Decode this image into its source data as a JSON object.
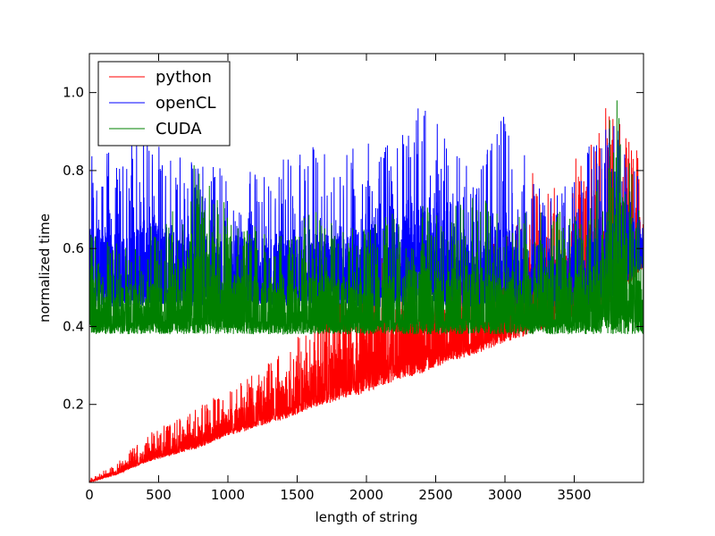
{
  "chart_data": {
    "type": "line",
    "title": "",
    "xlabel": "length of string",
    "ylabel": "normalized time",
    "xlim": [
      0,
      4000
    ],
    "ylim": [
      0.0,
      1.1
    ],
    "x_ticks": [
      0,
      500,
      1000,
      1500,
      2000,
      2500,
      3000,
      3500
    ],
    "x_tick_labels": [
      "0",
      "500",
      "1000",
      "1500",
      "2000",
      "2500",
      "3000",
      "3500"
    ],
    "y_ticks": [
      0.2,
      0.4,
      0.6,
      0.8,
      1.0
    ],
    "y_tick_labels": [
      "0.2",
      "0.4",
      "0.6",
      "0.8",
      "1.0"
    ],
    "legend_position": "top-left",
    "grid": false,
    "series": [
      {
        "name": "python",
        "color": "#ff0000",
        "x": [
          0,
          200,
          400,
          600,
          800,
          1000,
          1200,
          1400,
          1600,
          1800,
          2000,
          2200,
          2400,
          2600,
          2800,
          3000,
          3200,
          3400,
          3600,
          3800,
          4000
        ],
        "baseline": [
          0.0,
          0.02,
          0.05,
          0.07,
          0.09,
          0.12,
          0.14,
          0.16,
          0.19,
          0.21,
          0.23,
          0.26,
          0.28,
          0.31,
          0.33,
          0.36,
          0.38,
          0.41,
          0.43,
          0.47,
          0.55
        ],
        "peak": [
          0.01,
          0.05,
          0.12,
          0.16,
          0.2,
          0.24,
          0.28,
          0.34,
          0.42,
          0.55,
          0.6,
          0.65,
          0.6,
          0.6,
          0.6,
          0.65,
          0.8,
          0.75,
          0.9,
          1.0,
          0.81
        ]
      },
      {
        "name": "openCL",
        "color": "#0000ff",
        "x": [
          0,
          200,
          400,
          600,
          800,
          1000,
          1200,
          1400,
          1600,
          1800,
          2000,
          2200,
          2400,
          2600,
          2800,
          3000,
          3200,
          3400,
          3600,
          3800,
          4000
        ],
        "baseline": [
          0.45,
          0.45,
          0.45,
          0.45,
          0.45,
          0.45,
          0.45,
          0.45,
          0.45,
          0.45,
          0.45,
          0.45,
          0.45,
          0.45,
          0.45,
          0.45,
          0.45,
          0.45,
          0.45,
          0.48,
          0.55
        ],
        "peak": [
          0.86,
          0.84,
          0.9,
          0.86,
          0.83,
          0.84,
          0.8,
          0.83,
          0.87,
          0.84,
          0.88,
          0.87,
          1.0,
          0.86,
          0.8,
          0.95,
          0.8,
          0.74,
          0.86,
          0.94,
          0.75
        ]
      },
      {
        "name": "CUDA",
        "color": "#008000",
        "x": [
          0,
          200,
          400,
          600,
          800,
          1000,
          1200,
          1400,
          1600,
          1800,
          2000,
          2200,
          2400,
          2600,
          2800,
          3000,
          3200,
          3400,
          3600,
          3800,
          4000
        ],
        "baseline": [
          0.38,
          0.38,
          0.38,
          0.38,
          0.38,
          0.38,
          0.38,
          0.38,
          0.38,
          0.38,
          0.38,
          0.38,
          0.38,
          0.38,
          0.38,
          0.38,
          0.38,
          0.38,
          0.38,
          0.38,
          0.38
        ],
        "peak": [
          0.68,
          0.62,
          0.65,
          0.7,
          0.85,
          0.7,
          0.66,
          0.63,
          0.7,
          0.67,
          0.66,
          0.72,
          0.72,
          0.7,
          0.75,
          0.68,
          0.7,
          0.7,
          0.69,
          1.0,
          0.65
        ]
      }
    ]
  }
}
